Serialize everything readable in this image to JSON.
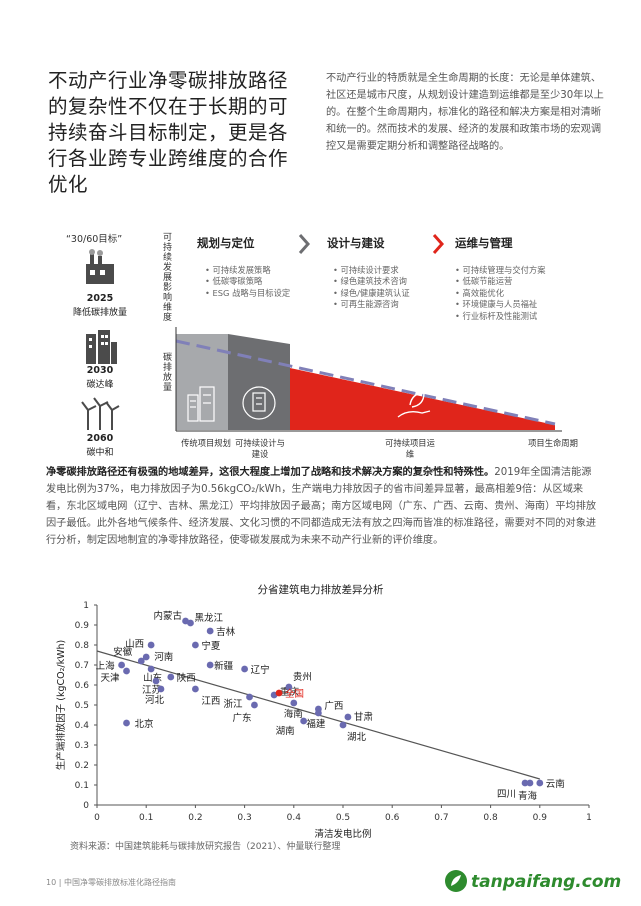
{
  "headline": "不动产行业净零碳排放路径的复杂性不仅在于长期的可持续奋斗目标制定，更是各行各业跨专业跨维度的合作优化",
  "intro": "不动产行业的特质就是全生命周期的长度：无论是单体建筑、社区还是城市尺度，从规划设计建造到运维都是至少30年以上的。在整个生命周期内，标准化的路径和解决方案是相对清晰和统一的。然而技术的发展、经济的发展和政策市场的宏观调控又是需要定期分析和调整路径战略的。",
  "diagram": {
    "goal_title": "“30/60目标”",
    "goals": [
      {
        "year": "2025",
        "label": "降低碳排放量"
      },
      {
        "year": "2030",
        "label": "碳达峰"
      },
      {
        "year": "2060",
        "label": "碳中和"
      }
    ],
    "vlabel_top": "可持续发展影响维度",
    "vlabel_bottom": "碳排放量",
    "stages": [
      {
        "title": "规划与定位",
        "bullets": [
          "可持续发展策略",
          "低碳零碳策略",
          "ESG 战略与目标设定"
        ]
      },
      {
        "title": "设计与建设",
        "bullets": [
          "可持续设计要求",
          "绿色建筑技术咨询",
          "绿色/健康建筑认证",
          "可再生能源咨询"
        ]
      },
      {
        "title": "运维与管理",
        "bullets": [
          "可持续管理与交付方案",
          "低碳节能运营",
          "高效能优化",
          "环境健康与人员福祉",
          "行业标杆及性能测试"
        ]
      }
    ],
    "axis_labels": [
      "传统项目规划",
      "可持续设计与建设",
      "可持续项目运维",
      "项目生命周期"
    ],
    "colors": {
      "red": "#e0251b",
      "dark": "#6d6e71",
      "light": "#a7a9ac",
      "dash": "#8080b8"
    }
  },
  "para_bold": "净零碳排放路径还有极强的地域差异，这很大程度上增加了战略和技术解决方案的复杂性和特殊性。",
  "para_rest": "2019年全国清洁能源发电比例为37%，电力排放因子为0.56kgCO₂/kWh，生产端电力排放因子的省市间差异显著，最高相差9倍：从区域来看，东北区域电网（辽宁、吉林、黑龙江）平均排放因子最高；南方区域电网（广东、广西、云南、贵州、海南）平均排放因子最低。此外各地气候条件、经济发展、文化习惯的不同都造成无法有放之四海而皆准的标准路径，需要对不同的对象进行分析，制定因地制宜的净零排放路径，使零碳发展成为未来不动产行业新的评价维度。",
  "chart_data": {
    "type": "scatter",
    "title": "分省建筑电力排放差异分析",
    "xlabel": "清洁发电比例",
    "ylabel": "生产端排放因子 (kgCO₂/kWh)",
    "xlim": [
      0,
      1
    ],
    "ylim": [
      0,
      1
    ],
    "xticks": [
      "0",
      "0.1",
      "0.2",
      "0.3",
      "0.4",
      "0.5",
      "0.6",
      "0.7",
      "0.8",
      "0.9",
      "1"
    ],
    "yticks": [
      "0",
      "0.1",
      "0.2",
      "0.3",
      "0.4",
      "0.5",
      "0.6",
      "0.7",
      "0.8",
      "0.9",
      "1"
    ],
    "trendline": [
      [
        0.0,
        0.77
      ],
      [
        0.9,
        0.13
      ]
    ],
    "points": [
      {
        "name": "内蒙古",
        "x": 0.18,
        "y": 0.92
      },
      {
        "name": "黑龙江",
        "x": 0.19,
        "y": 0.91
      },
      {
        "name": "吉林",
        "x": 0.23,
        "y": 0.87
      },
      {
        "name": "山西",
        "x": 0.11,
        "y": 0.8
      },
      {
        "name": "宁夏",
        "x": 0.2,
        "y": 0.8
      },
      {
        "name": "河南",
        "x": 0.1,
        "y": 0.74
      },
      {
        "name": "安徽",
        "x": 0.09,
        "y": 0.72
      },
      {
        "name": "上海",
        "x": 0.05,
        "y": 0.7
      },
      {
        "name": "新疆",
        "x": 0.23,
        "y": 0.7
      },
      {
        "name": "辽宁",
        "x": 0.3,
        "y": 0.68
      },
      {
        "name": "天津",
        "x": 0.06,
        "y": 0.67
      },
      {
        "name": "山东",
        "x": 0.11,
        "y": 0.68
      },
      {
        "name": "陕西",
        "x": 0.15,
        "y": 0.64
      },
      {
        "name": "江苏",
        "x": 0.12,
        "y": 0.62
      },
      {
        "name": "河北",
        "x": 0.13,
        "y": 0.58
      },
      {
        "name": "江西",
        "x": 0.2,
        "y": 0.58
      },
      {
        "name": "浙江",
        "x": 0.31,
        "y": 0.54
      },
      {
        "name": "重庆",
        "x": 0.36,
        "y": 0.55
      },
      {
        "name": "贵州",
        "x": 0.39,
        "y": 0.59
      },
      {
        "name": "全国",
        "x": 0.37,
        "y": 0.56,
        "highlight": true
      },
      {
        "name": "广东",
        "x": 0.32,
        "y": 0.5
      },
      {
        "name": "海南",
        "x": 0.4,
        "y": 0.51
      },
      {
        "name": "广西",
        "x": 0.45,
        "y": 0.48
      },
      {
        "name": "福建",
        "x": 0.45,
        "y": 0.46
      },
      {
        "name": "甘肃",
        "x": 0.51,
        "y": 0.44
      },
      {
        "name": "湖南",
        "x": 0.42,
        "y": 0.42
      },
      {
        "name": "湖北",
        "x": 0.5,
        "y": 0.4
      },
      {
        "name": "北京",
        "x": 0.06,
        "y": 0.41
      },
      {
        "name": "四川",
        "x": 0.87,
        "y": 0.11
      },
      {
        "name": "青海",
        "x": 0.88,
        "y": 0.11
      },
      {
        "name": "云南",
        "x": 0.9,
        "y": 0.11
      }
    ],
    "colors": {
      "point": "#6a6ab0",
      "highlight": "#e0251b",
      "trend": "#555555",
      "axis": "#555555"
    }
  },
  "source": "资料来源：中国建筑能耗与碳排放研究报告（2021）、仲量联行整理",
  "footer": "10 | 中国净零碳排放标准化路径指南",
  "logo": "tanpaifang.com"
}
